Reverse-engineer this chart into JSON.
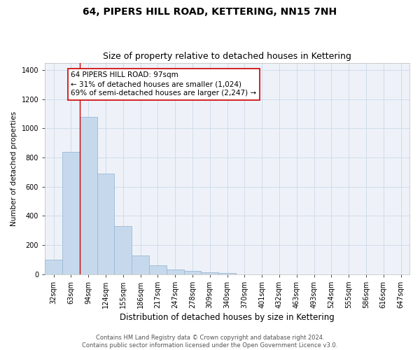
{
  "title": "64, PIPERS HILL ROAD, KETTERING, NN15 7NH",
  "subtitle": "Size of property relative to detached houses in Kettering",
  "xlabel": "Distribution of detached houses by size in Kettering",
  "ylabel": "Number of detached properties",
  "categories": [
    "32sqm",
    "63sqm",
    "94sqm",
    "124sqm",
    "155sqm",
    "186sqm",
    "217sqm",
    "247sqm",
    "278sqm",
    "309sqm",
    "340sqm",
    "370sqm",
    "401sqm",
    "432sqm",
    "463sqm",
    "493sqm",
    "524sqm",
    "555sqm",
    "586sqm",
    "616sqm",
    "647sqm"
  ],
  "values": [
    100,
    840,
    1080,
    690,
    330,
    125,
    60,
    30,
    20,
    13,
    5,
    0,
    0,
    0,
    0,
    0,
    0,
    0,
    0,
    0,
    0
  ],
  "bar_color": "#c6d9ec",
  "bar_edge_color": "#9ab8d4",
  "grid_color": "#d0dcea",
  "bg_color": "#eef2f8",
  "annotation_line_color": "#cc0000",
  "annotation_box_text": "64 PIPERS HILL ROAD: 97sqm\n← 31% of detached houses are smaller (1,024)\n69% of semi-detached houses are larger (2,247) →",
  "ylim": [
    0,
    1450
  ],
  "yticks": [
    0,
    200,
    400,
    600,
    800,
    1000,
    1200,
    1400
  ],
  "footer": "Contains HM Land Registry data © Crown copyright and database right 2024.\nContains public sector information licensed under the Open Government Licence v3.0.",
  "title_fontsize": 10,
  "subtitle_fontsize": 9,
  "xlabel_fontsize": 8.5,
  "ylabel_fontsize": 7.5,
  "tick_fontsize": 7,
  "annotation_fontsize": 7.5,
  "footer_fontsize": 6
}
